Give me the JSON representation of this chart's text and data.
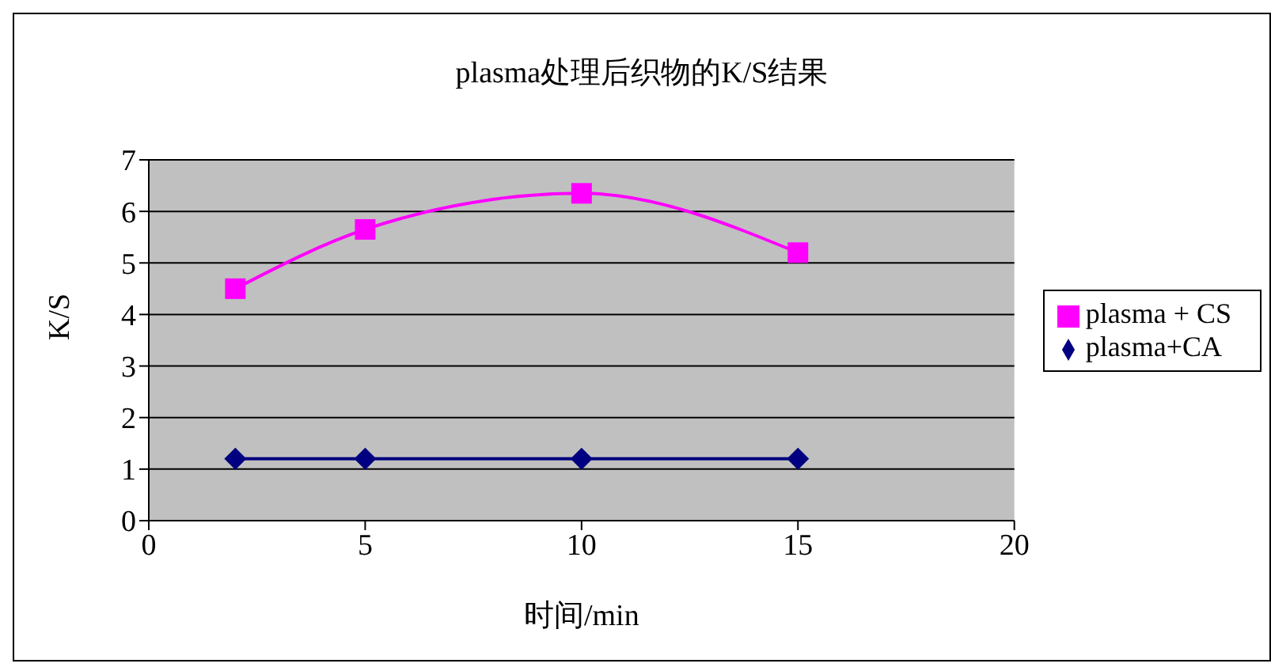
{
  "chart_data": {
    "type": "line",
    "title": "plasma处理后织物的K/S结果",
    "xlabel": "时间/min",
    "ylabel": "K/S",
    "x": [
      2,
      5,
      10,
      15
    ],
    "series": [
      {
        "name": "plasma+CA",
        "color": "#000080",
        "values": [
          1.2,
          1.2,
          1.2,
          1.2
        ],
        "marker": "diamond"
      },
      {
        "name": "plasma + CS",
        "color": "#ff00ff",
        "values": [
          4.5,
          5.65,
          6.35,
          5.2
        ],
        "marker": "square"
      }
    ],
    "xlim": [
      0,
      20
    ],
    "xticks": [
      0,
      5,
      10,
      15,
      20
    ],
    "ylim": [
      0,
      7
    ],
    "yticks": [
      0,
      1,
      2,
      3,
      4,
      5,
      6,
      7
    ],
    "grid": "y",
    "legend": "right",
    "line_style": "solid"
  }
}
